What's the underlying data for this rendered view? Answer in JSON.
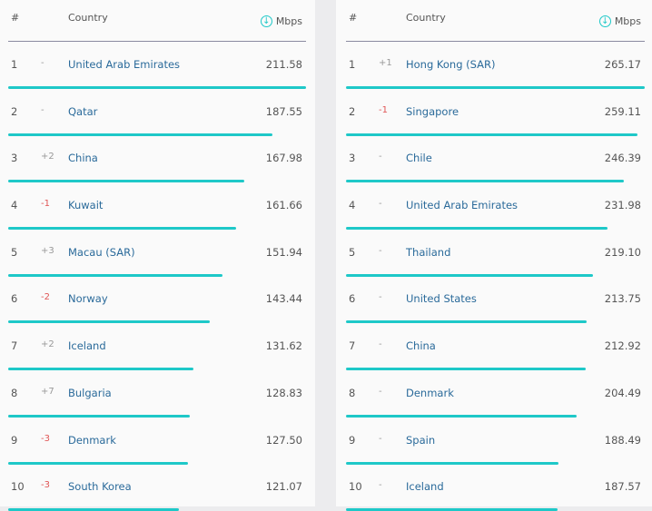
{
  "colors": {
    "accent": "#1ec8c8",
    "country": "#2a6a9a",
    "negative": "#e05555"
  },
  "header": {
    "rank": "#",
    "country": "Country",
    "unit": "Mbps",
    "unit_icon": "download-arrow-icon"
  },
  "tables": [
    {
      "rows": [
        {
          "rank": "1",
          "change": "-",
          "country": "United Arab Emirates",
          "speed": "211.58"
        },
        {
          "rank": "2",
          "change": "-",
          "country": "Qatar",
          "speed": "187.55"
        },
        {
          "rank": "3",
          "change": "+2",
          "country": "China",
          "speed": "167.98"
        },
        {
          "rank": "4",
          "change": "-1",
          "country": "Kuwait",
          "speed": "161.66"
        },
        {
          "rank": "5",
          "change": "+3",
          "country": "Macau (SAR)",
          "speed": "151.94"
        },
        {
          "rank": "6",
          "change": "-2",
          "country": "Norway",
          "speed": "143.44"
        },
        {
          "rank": "7",
          "change": "+2",
          "country": "Iceland",
          "speed": "131.62"
        },
        {
          "rank": "8",
          "change": "+7",
          "country": "Bulgaria",
          "speed": "128.83"
        },
        {
          "rank": "9",
          "change": "-3",
          "country": "Denmark",
          "speed": "127.50"
        },
        {
          "rank": "10",
          "change": "-3",
          "country": "South Korea",
          "speed": "121.07"
        }
      ]
    },
    {
      "rows": [
        {
          "rank": "1",
          "change": "+1",
          "country": "Hong Kong (SAR)",
          "speed": "265.17"
        },
        {
          "rank": "2",
          "change": "-1",
          "country": "Singapore",
          "speed": "259.11"
        },
        {
          "rank": "3",
          "change": "-",
          "country": "Chile",
          "speed": "246.39"
        },
        {
          "rank": "4",
          "change": "-",
          "country": "United Arab Emirates",
          "speed": "231.98"
        },
        {
          "rank": "5",
          "change": "-",
          "country": "Thailand",
          "speed": "219.10"
        },
        {
          "rank": "6",
          "change": "-",
          "country": "United States",
          "speed": "213.75"
        },
        {
          "rank": "7",
          "change": "-",
          "country": "China",
          "speed": "212.92"
        },
        {
          "rank": "8",
          "change": "-",
          "country": "Denmark",
          "speed": "204.49"
        },
        {
          "rank": "9",
          "change": "-",
          "country": "Spain",
          "speed": "188.49"
        },
        {
          "rank": "10",
          "change": "-",
          "country": "Iceland",
          "speed": "187.57"
        }
      ]
    }
  ]
}
